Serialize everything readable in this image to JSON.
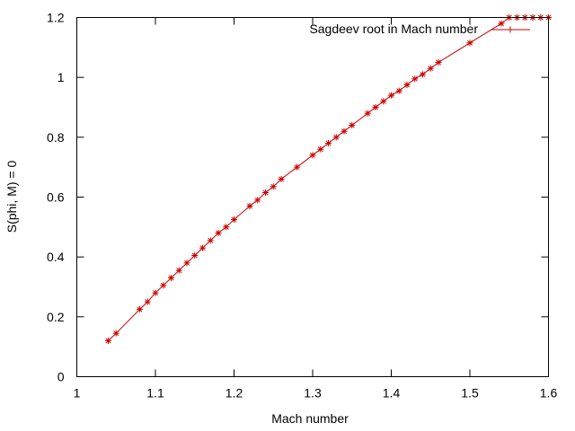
{
  "chart_data": {
    "type": "line",
    "title": "",
    "xlabel": "Mach number",
    "ylabel": "S(phi, M) = 0",
    "xlim": [
      1,
      1.6
    ],
    "ylim": [
      0,
      1.2
    ],
    "xticks": [
      1,
      1.1,
      1.2,
      1.3,
      1.4,
      1.5,
      1.6
    ],
    "yticks": [
      0,
      0.2,
      0.4,
      0.6,
      0.8,
      1,
      1.2
    ],
    "xtick_labels": [
      "1",
      "1.1",
      "1.2",
      "1.3",
      "1.4",
      "1.5",
      "1.6"
    ],
    "ytick_labels": [
      "0",
      "0.2",
      "0.4",
      "0.6",
      "0.8",
      "1",
      "1.2"
    ],
    "grid": false,
    "legend_position": "top-right",
    "series": [
      {
        "name": "Sagdeev root in Mach number",
        "color": "#cc0000",
        "marker": "star",
        "x": [
          1.04,
          1.05,
          1.08,
          1.09,
          1.1,
          1.11,
          1.12,
          1.13,
          1.14,
          1.15,
          1.16,
          1.17,
          1.18,
          1.19,
          1.2,
          1.22,
          1.23,
          1.24,
          1.25,
          1.26,
          1.28,
          1.3,
          1.31,
          1.32,
          1.33,
          1.34,
          1.35,
          1.37,
          1.38,
          1.39,
          1.4,
          1.41,
          1.42,
          1.43,
          1.44,
          1.45,
          1.46,
          1.5,
          1.54,
          1.55,
          1.56,
          1.57,
          1.58,
          1.59,
          1.6
        ],
        "y": [
          0.12,
          0.145,
          0.225,
          0.25,
          0.28,
          0.305,
          0.33,
          0.355,
          0.38,
          0.405,
          0.43,
          0.455,
          0.48,
          0.5,
          0.525,
          0.57,
          0.59,
          0.615,
          0.635,
          0.66,
          0.7,
          0.74,
          0.76,
          0.78,
          0.8,
          0.82,
          0.84,
          0.88,
          0.9,
          0.92,
          0.94,
          0.955,
          0.975,
          0.995,
          1.01,
          1.03,
          1.05,
          1.115,
          1.18,
          1.2,
          1.2,
          1.2,
          1.2,
          1.2,
          1.2
        ]
      }
    ]
  }
}
